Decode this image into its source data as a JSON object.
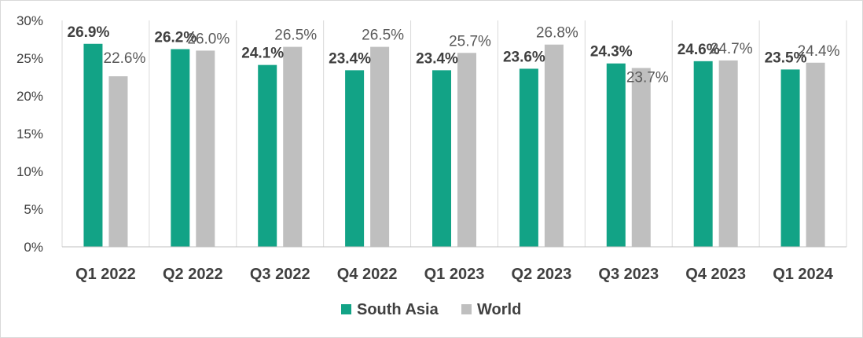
{
  "chart_data": {
    "type": "bar",
    "categories": [
      "Q1 2022",
      "Q2 2022",
      "Q3 2022",
      "Q4 2022",
      "Q1 2023",
      "Q2 2023",
      "Q3 2023",
      "Q4 2023",
      "Q1 2024"
    ],
    "series": [
      {
        "name": "South Asia",
        "color": "#12a386",
        "values": [
          26.9,
          26.2,
          24.1,
          23.4,
          23.4,
          23.6,
          24.3,
          24.6,
          23.5
        ],
        "labels": [
          "26.9%",
          "26.2%",
          "24.1%",
          "23.4%",
          "23.4%",
          "23.6%",
          "24.3%",
          "24.6%",
          "23.5%"
        ]
      },
      {
        "name": "World",
        "color": "#bfbfbf",
        "values": [
          22.6,
          26.0,
          26.5,
          26.5,
          25.7,
          26.8,
          23.7,
          24.7,
          24.4
        ],
        "labels": [
          "22.6%",
          "26.0%",
          "26.5%",
          "26.5%",
          "25.7%",
          "26.8%",
          "23.7%",
          "24.7%",
          "24.4%"
        ]
      }
    ],
    "yticks": [
      "0%",
      "5%",
      "10%",
      "15%",
      "20%",
      "25%",
      "30%"
    ],
    "ylim": [
      0,
      30
    ],
    "grid": "vertical category separators",
    "legend_position": "bottom"
  }
}
